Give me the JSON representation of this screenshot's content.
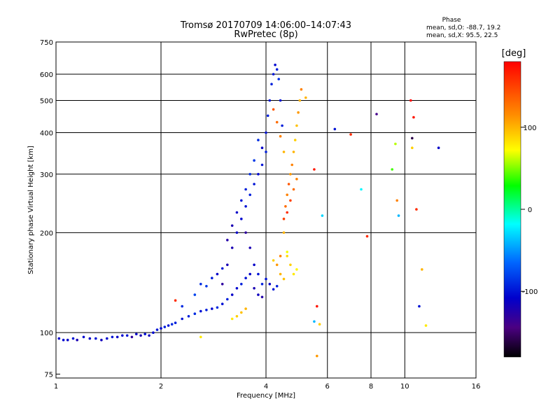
{
  "chart_data": {
    "type": "scatter",
    "title": "Tromsø 20170709 14:06:00–14:07:43",
    "subtitle": "RwPretec (8p)",
    "xlabel": "Frequency [MHz]",
    "ylabel": "Stationary phase Virtual Height [km]",
    "x_scale": "log2",
    "y_scale": "log",
    "xlim": [
      1,
      16
    ],
    "ylim": [
      73,
      750
    ],
    "x_ticks": [
      1,
      2,
      4,
      6,
      8,
      10,
      16
    ],
    "x_tick_labels": [
      "1",
      "2",
      "4",
      "6",
      "8",
      "10",
      "16"
    ],
    "y_ticks": [
      75,
      100,
      200,
      300,
      400,
      500,
      600,
      750
    ],
    "y_tick_labels": [
      "75",
      "100",
      "200",
      "300",
      "400",
      "500",
      "600",
      "750"
    ],
    "grid": true,
    "phase_info": {
      "heading": "Phase",
      "line_o": "mean, sd,O: -88.7, 19.2",
      "line_x": "mean, sd,X:  95.5, 22.5"
    },
    "colorbar": {
      "label": "[deg]",
      "range": [
        -180,
        180
      ],
      "ticks": [
        100,
        0,
        -100
      ],
      "tick_labels": [
        "100",
        "0",
        "-100"
      ]
    },
    "series": [
      {
        "points": [
          [
            1.02,
            96,
            -110
          ],
          [
            1.05,
            95,
            -105
          ],
          [
            1.08,
            95,
            -110
          ],
          [
            1.12,
            96,
            -100
          ],
          [
            1.15,
            95,
            -120
          ],
          [
            1.2,
            97,
            -105
          ],
          [
            1.25,
            96,
            -110
          ],
          [
            1.3,
            96,
            -100
          ],
          [
            1.35,
            95,
            -115
          ],
          [
            1.4,
            96,
            -105
          ],
          [
            1.45,
            97,
            -100
          ],
          [
            1.5,
            97,
            -110
          ],
          [
            1.55,
            98,
            -105
          ],
          [
            1.6,
            98,
            -100
          ],
          [
            1.65,
            97,
            -130
          ],
          [
            1.7,
            99,
            -110
          ],
          [
            1.75,
            98,
            -120
          ],
          [
            1.8,
            99,
            -100
          ],
          [
            1.85,
            98,
            -115
          ],
          [
            1.9,
            100,
            -105
          ],
          [
            1.95,
            102,
            -100
          ],
          [
            2.0,
            103,
            -105
          ],
          [
            2.05,
            104,
            -95
          ],
          [
            2.1,
            105,
            -100
          ],
          [
            2.15,
            106,
            -90
          ],
          [
            2.2,
            107,
            -95
          ],
          [
            2.3,
            110,
            -100
          ],
          [
            2.4,
            112,
            -95
          ],
          [
            2.5,
            114,
            -90
          ],
          [
            2.6,
            116,
            -100
          ],
          [
            2.7,
            117,
            -95
          ],
          [
            2.8,
            118,
            -105
          ],
          [
            2.9,
            119,
            -90
          ],
          [
            3.0,
            122,
            -100
          ],
          [
            3.1,
            126,
            -95
          ],
          [
            3.2,
            130,
            -110
          ],
          [
            3.3,
            136,
            -105
          ],
          [
            3.4,
            140,
            -95
          ],
          [
            3.5,
            146,
            -100
          ],
          [
            3.6,
            150,
            -110
          ],
          [
            3.7,
            136,
            -120
          ],
          [
            3.8,
            130,
            -115
          ],
          [
            3.9,
            128,
            -125
          ],
          [
            2.3,
            120,
            -90
          ],
          [
            2.5,
            130,
            -80
          ],
          [
            2.6,
            140,
            -90
          ],
          [
            2.7,
            138,
            -85
          ],
          [
            2.8,
            146,
            -95
          ],
          [
            2.9,
            150,
            -110
          ],
          [
            3.0,
            156,
            -100
          ],
          [
            3.1,
            160,
            -120
          ],
          [
            3.0,
            140,
            -130
          ],
          [
            3.2,
            180,
            -120
          ],
          [
            3.3,
            200,
            -110
          ],
          [
            3.4,
            220,
            -105
          ],
          [
            3.5,
            240,
            -100
          ],
          [
            3.6,
            260,
            -95
          ],
          [
            3.7,
            280,
            -100
          ],
          [
            3.8,
            300,
            -105
          ],
          [
            3.9,
            320,
            -100
          ],
          [
            4.0,
            350,
            -95
          ],
          [
            4.0,
            400,
            -100
          ],
          [
            4.05,
            450,
            -95
          ],
          [
            4.1,
            500,
            -100
          ],
          [
            4.15,
            560,
            -95
          ],
          [
            4.2,
            600,
            -100
          ],
          [
            4.25,
            640,
            -105
          ],
          [
            4.3,
            620,
            -95
          ],
          [
            4.35,
            580,
            -90
          ],
          [
            4.4,
            500,
            -100
          ],
          [
            4.45,
            420,
            -95
          ],
          [
            3.9,
            360,
            -110
          ],
          [
            3.8,
            380,
            -90
          ],
          [
            3.7,
            330,
            -85
          ],
          [
            3.6,
            300,
            -90
          ],
          [
            3.5,
            270,
            -95
          ],
          [
            3.4,
            250,
            -100
          ],
          [
            3.3,
            230,
            -110
          ],
          [
            3.2,
            210,
            -120
          ],
          [
            3.1,
            190,
            -125
          ],
          [
            3.5,
            200,
            -130
          ],
          [
            3.6,
            180,
            -120
          ],
          [
            3.7,
            160,
            -110
          ],
          [
            3.8,
            150,
            -100
          ],
          [
            3.9,
            140,
            -95
          ],
          [
            4.0,
            145,
            -100
          ],
          [
            4.1,
            140,
            -110
          ],
          [
            4.2,
            135,
            -100
          ],
          [
            4.3,
            138,
            -95
          ]
        ]
      },
      {
        "points": [
          [
            4.5,
            220,
            150
          ],
          [
            4.55,
            240,
            130
          ],
          [
            4.6,
            260,
            120
          ],
          [
            4.65,
            280,
            140
          ],
          [
            4.7,
            300,
            110
          ],
          [
            4.75,
            320,
            120
          ],
          [
            4.8,
            350,
            100
          ],
          [
            4.85,
            380,
            90
          ],
          [
            4.9,
            420,
            95
          ],
          [
            4.95,
            460,
            110
          ],
          [
            5.0,
            500,
            100
          ],
          [
            5.05,
            540,
            120
          ],
          [
            4.6,
            230,
            160
          ],
          [
            4.7,
            250,
            150
          ],
          [
            4.8,
            270,
            130
          ],
          [
            4.9,
            290,
            120
          ],
          [
            4.5,
            200,
            100
          ],
          [
            4.6,
            170,
            85
          ],
          [
            4.7,
            160,
            90
          ],
          [
            4.8,
            150,
            80
          ],
          [
            4.9,
            155,
            75
          ],
          [
            4.5,
            145,
            95
          ],
          [
            4.4,
            150,
            100
          ],
          [
            4.3,
            160,
            110
          ],
          [
            4.2,
            165,
            90
          ],
          [
            4.4,
            170,
            120
          ],
          [
            4.6,
            175,
            70
          ],
          [
            3.2,
            110,
            80
          ],
          [
            3.3,
            112,
            90
          ],
          [
            3.4,
            115,
            95
          ],
          [
            3.5,
            118,
            100
          ],
          [
            4.2,
            470,
            140
          ],
          [
            4.3,
            430,
            130
          ],
          [
            4.4,
            390,
            120
          ],
          [
            4.5,
            350,
            100
          ]
        ]
      },
      {
        "points": [
          [
            5.2,
            510,
            100
          ],
          [
            5.5,
            310,
            170
          ],
          [
            5.8,
            225,
            -30
          ],
          [
            6.3,
            410,
            -100
          ],
          [
            7.0,
            395,
            160
          ],
          [
            7.5,
            270,
            -20
          ],
          [
            7.8,
            195,
            160
          ],
          [
            8.3,
            455,
            -140
          ],
          [
            9.2,
            310,
            40
          ],
          [
            9.4,
            370,
            60
          ],
          [
            9.5,
            250,
            120
          ],
          [
            9.6,
            225,
            -40
          ],
          [
            10.4,
            500,
            180
          ],
          [
            10.5,
            360,
            90
          ],
          [
            10.5,
            385,
            -160
          ],
          [
            10.6,
            445,
            170
          ],
          [
            10.8,
            235,
            160
          ],
          [
            11.2,
            155,
            100
          ],
          [
            11.0,
            120,
            -100
          ],
          [
            11.5,
            105,
            80
          ],
          [
            12.5,
            360,
            -110
          ],
          [
            5.6,
            120,
            170
          ],
          [
            5.5,
            108,
            -40
          ],
          [
            5.7,
            106,
            90
          ],
          [
            5.6,
            85,
            110
          ],
          [
            2.2,
            125,
            160
          ],
          [
            2.6,
            97,
            80
          ]
        ]
      }
    ]
  }
}
